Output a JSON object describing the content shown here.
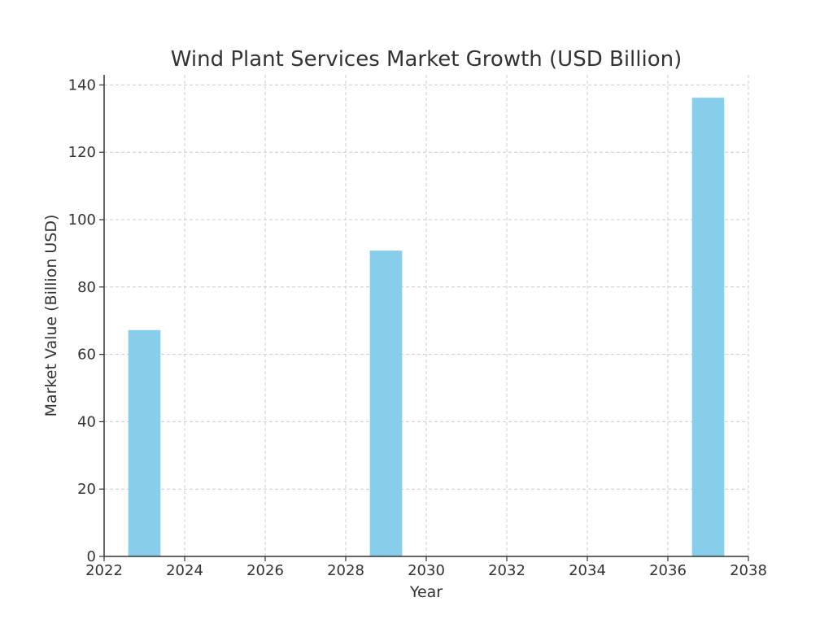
{
  "chart_data": {
    "type": "bar",
    "title": "Wind Plant Services Market Growth (USD Billion)",
    "xlabel": "Year",
    "ylabel": "Market Value (Billion USD)",
    "x": [
      2023,
      2029,
      2037
    ],
    "values": [
      67.2,
      90.8,
      136.2
    ],
    "xlim": [
      2022,
      2038
    ],
    "ylim": [
      0,
      143
    ],
    "x_ticks": [
      "2022",
      "2024",
      "2026",
      "2028",
      "2030",
      "2032",
      "2034",
      "2036",
      "2038"
    ],
    "y_ticks": [
      "0",
      "20",
      "40",
      "60",
      "80",
      "100",
      "120",
      "140"
    ],
    "bar_width_years": 0.8,
    "bar_color": "#87ceeb",
    "grid": true,
    "grid_style": "dashed"
  }
}
